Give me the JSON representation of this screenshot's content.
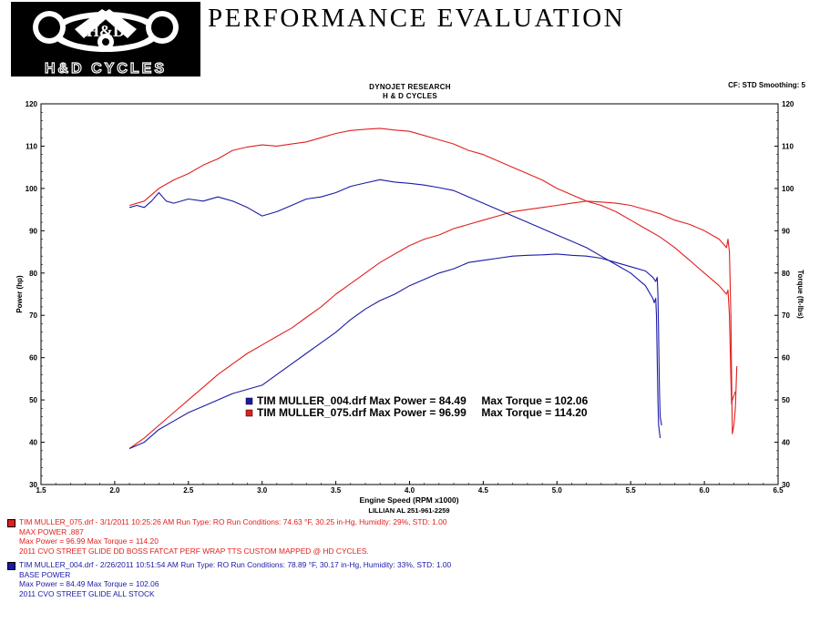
{
  "header": {
    "logo_text": "H&D CYCLES",
    "banner_title": "PERFORMANCE EVALUATION",
    "line1": "DYNOJET RESEARCH",
    "line2": "H & D CYCLES",
    "settings": "CF: STD  Smoothing: 5"
  },
  "chart_data": {
    "type": "line",
    "xlabel": "Engine Speed (RPM x1000)",
    "ylabel_left": "Power (hp)",
    "ylabel_right": "Torque (ft-lbs)",
    "footer_label": "LILLIAN AL 251-961-2259",
    "xlim": [
      1.5,
      6.5
    ],
    "ylim": [
      30,
      120
    ],
    "xticks": [
      "1.5",
      "2.0",
      "2.5",
      "3.0",
      "3.5",
      "4.0",
      "4.5",
      "5.0",
      "5.5",
      "6.0",
      "6.5"
    ],
    "yticks": [
      "30",
      "40",
      "50",
      "60",
      "70",
      "80",
      "90",
      "100",
      "110",
      "120"
    ],
    "grid": false,
    "legend": [
      {
        "text": "TIM MULLER_004.drf Max Power = 84.49     Max Torque = 102.06",
        "color": "#1a1aa6"
      },
      {
        "text": "TIM MULLER_075.drf Max Power = 96.99     Max Torque = 114.20",
        "color": "#e0201e"
      }
    ],
    "series": [
      {
        "name": "TIM MULLER_075.drf Power",
        "color": "#e0201e",
        "points": [
          [
            2.1,
            38.5
          ],
          [
            2.2,
            41
          ],
          [
            2.3,
            44
          ],
          [
            2.4,
            47
          ],
          [
            2.5,
            50
          ],
          [
            2.6,
            53
          ],
          [
            2.7,
            56
          ],
          [
            2.8,
            58.5
          ],
          [
            2.9,
            61
          ],
          [
            3.0,
            63
          ],
          [
            3.1,
            65
          ],
          [
            3.2,
            67
          ],
          [
            3.3,
            69.5
          ],
          [
            3.4,
            72
          ],
          [
            3.5,
            75
          ],
          [
            3.6,
            77.5
          ],
          [
            3.7,
            80
          ],
          [
            3.8,
            82.5
          ],
          [
            3.9,
            84.5
          ],
          [
            4.0,
            86.5
          ],
          [
            4.1,
            88
          ],
          [
            4.2,
            89
          ],
          [
            4.3,
            90.5
          ],
          [
            4.4,
            91.5
          ],
          [
            4.5,
            92.5
          ],
          [
            4.6,
            93.5
          ],
          [
            4.7,
            94.5
          ],
          [
            4.8,
            95
          ],
          [
            4.9,
            95.5
          ],
          [
            5.0,
            96
          ],
          [
            5.1,
            96.5
          ],
          [
            5.2,
            97
          ],
          [
            5.3,
            96.8
          ],
          [
            5.4,
            96.5
          ],
          [
            5.5,
            96
          ],
          [
            5.6,
            95
          ],
          [
            5.7,
            94
          ],
          [
            5.8,
            92.5
          ],
          [
            5.9,
            91.5
          ],
          [
            6.0,
            90
          ],
          [
            6.1,
            88
          ],
          [
            6.15,
            86
          ],
          [
            6.16,
            88
          ],
          [
            6.17,
            85
          ],
          [
            6.18,
            70
          ],
          [
            6.185,
            55
          ],
          [
            6.19,
            42
          ],
          [
            6.2,
            44
          ],
          [
            6.21,
            48
          ],
          [
            6.215,
            53
          ],
          [
            6.22,
            58
          ]
        ]
      },
      {
        "name": "TIM MULLER_075.drf Torque",
        "color": "#e0201e",
        "points": [
          [
            2.1,
            96
          ],
          [
            2.2,
            97
          ],
          [
            2.3,
            100
          ],
          [
            2.4,
            102
          ],
          [
            2.5,
            103.5
          ],
          [
            2.6,
            105.5
          ],
          [
            2.7,
            107
          ],
          [
            2.8,
            109
          ],
          [
            2.9,
            109.8
          ],
          [
            3.0,
            110.3
          ],
          [
            3.1,
            110
          ],
          [
            3.2,
            110.5
          ],
          [
            3.3,
            111
          ],
          [
            3.4,
            112
          ],
          [
            3.5,
            113
          ],
          [
            3.6,
            113.7
          ],
          [
            3.7,
            114
          ],
          [
            3.8,
            114.2
          ],
          [
            3.9,
            113.8
          ],
          [
            4.0,
            113.5
          ],
          [
            4.1,
            112.5
          ],
          [
            4.2,
            111.5
          ],
          [
            4.3,
            110.5
          ],
          [
            4.4,
            109
          ],
          [
            4.5,
            108
          ],
          [
            4.6,
            106.5
          ],
          [
            4.7,
            105
          ],
          [
            4.8,
            103.5
          ],
          [
            4.9,
            102
          ],
          [
            5.0,
            100
          ],
          [
            5.1,
            98.5
          ],
          [
            5.2,
            97
          ],
          [
            5.3,
            96
          ],
          [
            5.4,
            94.5
          ],
          [
            5.5,
            92.5
          ],
          [
            5.6,
            90.5
          ],
          [
            5.7,
            88.5
          ],
          [
            5.8,
            86
          ],
          [
            5.9,
            83
          ],
          [
            6.0,
            80
          ],
          [
            6.1,
            77
          ],
          [
            6.15,
            75
          ],
          [
            6.16,
            76
          ],
          [
            6.17,
            70
          ],
          [
            6.18,
            55
          ],
          [
            6.185,
            49
          ],
          [
            6.19,
            50
          ],
          [
            6.2,
            51
          ],
          [
            6.21,
            52
          ]
        ]
      },
      {
        "name": "TIM MULLER_004.drf Power",
        "color": "#1a1aa6",
        "points": [
          [
            2.1,
            38.5
          ],
          [
            2.2,
            40
          ],
          [
            2.3,
            43
          ],
          [
            2.4,
            45
          ],
          [
            2.5,
            47
          ],
          [
            2.6,
            48.5
          ],
          [
            2.7,
            50
          ],
          [
            2.8,
            51.5
          ],
          [
            2.9,
            52.5
          ],
          [
            3.0,
            53.5
          ],
          [
            3.1,
            56
          ],
          [
            3.2,
            58.5
          ],
          [
            3.3,
            61
          ],
          [
            3.4,
            63.5
          ],
          [
            3.5,
            66
          ],
          [
            3.6,
            69
          ],
          [
            3.7,
            71.5
          ],
          [
            3.8,
            73.5
          ],
          [
            3.9,
            75
          ],
          [
            4.0,
            77
          ],
          [
            4.1,
            78.5
          ],
          [
            4.2,
            80
          ],
          [
            4.3,
            81
          ],
          [
            4.4,
            82.5
          ],
          [
            4.5,
            83
          ],
          [
            4.6,
            83.5
          ],
          [
            4.7,
            84
          ],
          [
            4.8,
            84.2
          ],
          [
            4.9,
            84.3
          ],
          [
            5.0,
            84.49
          ],
          [
            5.1,
            84.2
          ],
          [
            5.2,
            84
          ],
          [
            5.3,
            83.5
          ],
          [
            5.4,
            82.5
          ],
          [
            5.5,
            81.5
          ],
          [
            5.6,
            80.5
          ],
          [
            5.65,
            79
          ],
          [
            5.67,
            78
          ],
          [
            5.68,
            79
          ],
          [
            5.685,
            75
          ],
          [
            5.69,
            65
          ],
          [
            5.695,
            52
          ],
          [
            5.7,
            46
          ],
          [
            5.705,
            45
          ],
          [
            5.71,
            44
          ]
        ]
      },
      {
        "name": "TIM MULLER_004.drf Torque",
        "color": "#1a1aa6",
        "points": [
          [
            2.1,
            95.5
          ],
          [
            2.15,
            96
          ],
          [
            2.2,
            95.5
          ],
          [
            2.25,
            97
          ],
          [
            2.3,
            99
          ],
          [
            2.35,
            97
          ],
          [
            2.4,
            96.5
          ],
          [
            2.5,
            97.5
          ],
          [
            2.6,
            97
          ],
          [
            2.7,
            98
          ],
          [
            2.8,
            97
          ],
          [
            2.9,
            95.5
          ],
          [
            3.0,
            93.5
          ],
          [
            3.1,
            94.5
          ],
          [
            3.2,
            96
          ],
          [
            3.3,
            97.5
          ],
          [
            3.4,
            98
          ],
          [
            3.5,
            99
          ],
          [
            3.6,
            100.5
          ],
          [
            3.7,
            101.3
          ],
          [
            3.8,
            102.06
          ],
          [
            3.9,
            101.5
          ],
          [
            4.0,
            101.2
          ],
          [
            4.1,
            100.8
          ],
          [
            4.2,
            100.2
          ],
          [
            4.3,
            99.5
          ],
          [
            4.4,
            98
          ],
          [
            4.5,
            96.5
          ],
          [
            4.6,
            95
          ],
          [
            4.7,
            93.5
          ],
          [
            4.8,
            92
          ],
          [
            4.9,
            90.5
          ],
          [
            5.0,
            89
          ],
          [
            5.1,
            87.5
          ],
          [
            5.2,
            86
          ],
          [
            5.3,
            84
          ],
          [
            5.4,
            82
          ],
          [
            5.5,
            80
          ],
          [
            5.6,
            77
          ],
          [
            5.65,
            74
          ],
          [
            5.66,
            73
          ],
          [
            5.67,
            74
          ],
          [
            5.675,
            70
          ],
          [
            5.68,
            60
          ],
          [
            5.685,
            50
          ],
          [
            5.69,
            44
          ],
          [
            5.7,
            41
          ]
        ]
      }
    ]
  },
  "run_info": [
    {
      "color": "#e0201e",
      "lines": [
        "TIM MULLER_075.drf - 3/1/2011 10:25:26 AM  Run Type: RO  Run Conditions: 74.63 °F, 30.25 in-Hg,  Humidity:  29%, STD: 1.00",
        "MAX POWER .887",
        "Max Power = 96.99  Max Torque = 114.20",
        "2011 CVO STREET GLIDE DD BOSS FATCAT PERF WRAP TTS  CUSTOM MAPPED @ HD CYCLES."
      ]
    },
    {
      "color": "#1a1aa6",
      "lines": [
        "TIM MULLER_004.drf - 2/26/2011 10:51:54 AM  Run Type: RO  Run Conditions: 78.89 °F, 30.17 in-Hg,  Humidity:  33%, STD: 1.00",
        "BASE POWER",
        "Max Power = 84.49  Max Torque = 102.06",
        "2011 CVO STREET GLIDE ALL STOCK"
      ]
    }
  ]
}
